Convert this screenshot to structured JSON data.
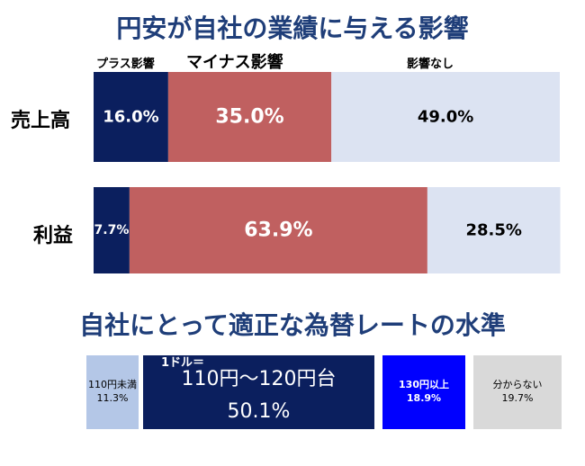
{
  "title_top": "円安が自社の業績に与える影響",
  "legend": {
    "plus": "プラス影響",
    "minus": "マイナス影響",
    "none": "影響なし"
  },
  "title_bottom": "自社にとって適正な為替レートの水準",
  "colors": {
    "plus": "#0b1f5e",
    "minus": "#c06060",
    "none": "#dce3f2",
    "title": "#1f3e79"
  },
  "chart_data": [
    {
      "type": "bar",
      "orientation": "horizontal",
      "stacked": true,
      "title": "円安が自社の業績に与える影響",
      "categories": [
        "売上高",
        "利益"
      ],
      "series": [
        {
          "name": "プラス影響",
          "values": [
            16.0,
            7.7
          ],
          "labels": [
            "16.0%",
            "7.7%"
          ]
        },
        {
          "name": "マイナス影響",
          "values": [
            35.0,
            63.9
          ],
          "labels": [
            "35.0%",
            "63.9%"
          ]
        },
        {
          "name": "影響なし",
          "values": [
            49.0,
            28.5
          ],
          "labels": [
            "49.0%",
            "28.5%"
          ]
        }
      ],
      "xlim": [
        0,
        100
      ],
      "legend_position": "top"
    },
    {
      "type": "bar",
      "stacked": true,
      "title": "自社にとって適正な為替レートの水準",
      "items": [
        {
          "label": "110円未満",
          "value": 11.3,
          "text": "11.3%",
          "color": "#b4c7e7"
        },
        {
          "label": "1ドル＝",
          "sublabel": "110円～120円台",
          "value": 50.1,
          "text": "50.1%",
          "color": "#0b1f5e"
        },
        {
          "label": "130円以上",
          "value": 18.9,
          "text": "18.9%",
          "color": "#0000ff"
        },
        {
          "label": "分からない",
          "value": 19.7,
          "text": "19.7%",
          "color": "#d9d9d9"
        }
      ]
    }
  ]
}
